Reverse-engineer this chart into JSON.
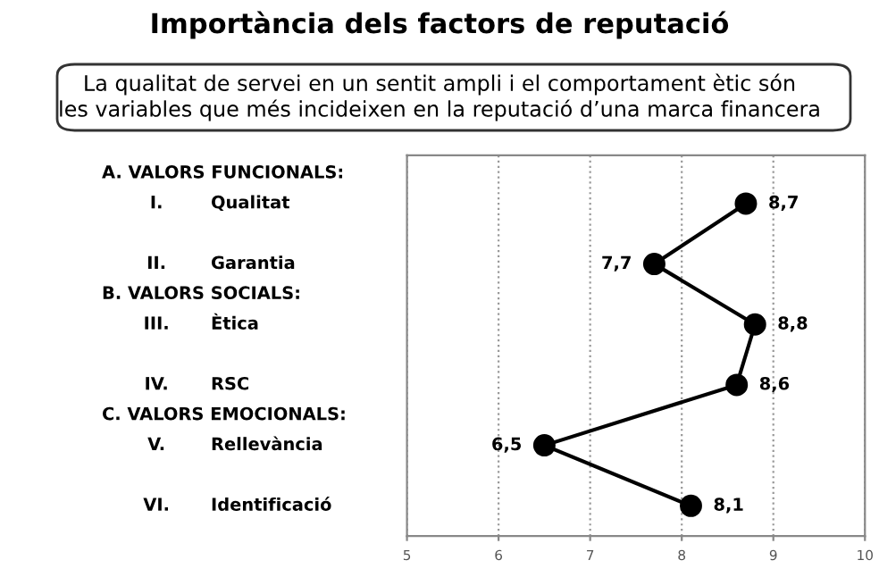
{
  "chart_data": {
    "type": "line",
    "orientation": "horizontal",
    "title": "Importància dels factors de reputació",
    "subtitle": "La qualitat de servei en un sentit ampli i el comportament ètic són\nles variables que més incideixen en la reputació d’una marca financera",
    "annotations": [
      "A. VALORS FUNCIONALS:",
      "B. VALORS SOCIALS:",
      "C. VALORS EMOCIONALS:"
    ],
    "categories": [
      "I. Qualitat",
      "II. Garantia",
      "III. Ètica",
      "IV. RSC",
      "V. Rellevància",
      "VI. Identificació"
    ],
    "series": [
      {
        "color": "#000000",
        "values": [
          8.7,
          7.7,
          8.8,
          8.6,
          6.5,
          8.1
        ],
        "value_labels": [
          "8,7",
          "7,7",
          "8,8",
          "8,6",
          "6,5",
          "8,1"
        ]
      }
    ],
    "xlim": [
      5,
      10
    ],
    "xticks": [
      5,
      6,
      7,
      8,
      9,
      10
    ],
    "grid": "x",
    "marker": "circle",
    "line_style": "solid"
  }
}
